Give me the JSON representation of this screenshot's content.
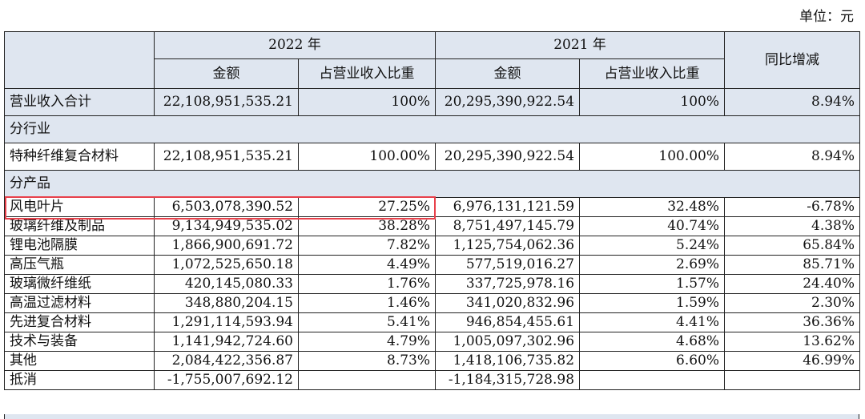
{
  "unit_label": "单位：元",
  "header": {
    "year_2022": "2022 年",
    "year_2021": "2021 年",
    "yoy": "同比增减",
    "amount": "金额",
    "share": "占营业收入比重"
  },
  "total_row": {
    "label": "营业收入合计",
    "amt_2022": "22,108,951,535.21",
    "pct_2022": "100%",
    "amt_2021": "20,295,390,922.54",
    "pct_2021": "100%",
    "yoy": "8.94%"
  },
  "sections": {
    "industry": "分行业",
    "product": "分产品"
  },
  "industry_rows": [
    {
      "label": "特种纤维复合材料",
      "amt_2022": "22,108,951,535.21",
      "pct_2022": "100.00%",
      "amt_2021": "20,295,390,922.54",
      "pct_2021": "100.00%",
      "yoy": "8.94%"
    }
  ],
  "product_rows": [
    {
      "label": "风电叶片",
      "amt_2022": "6,503,078,390.52",
      "pct_2022": "27.25%",
      "amt_2021": "6,976,131,121.59",
      "pct_2021": "32.48%",
      "yoy": "-6.78%"
    },
    {
      "label": "玻璃纤维及制品",
      "amt_2022": "9,134,949,535.02",
      "pct_2022": "38.28%",
      "amt_2021": "8,751,497,145.79",
      "pct_2021": "40.74%",
      "yoy": "4.38%"
    },
    {
      "label": "锂电池隔膜",
      "amt_2022": "1,866,900,691.72",
      "pct_2022": "7.82%",
      "amt_2021": "1,125,754,062.36",
      "pct_2021": "5.24%",
      "yoy": "65.84%"
    },
    {
      "label": "高压气瓶",
      "amt_2022": "1,072,525,650.18",
      "pct_2022": "4.49%",
      "amt_2021": "577,519,016.27",
      "pct_2021": "2.69%",
      "yoy": "85.71%"
    },
    {
      "label": "玻璃微纤维纸",
      "amt_2022": "420,145,080.33",
      "pct_2022": "1.76%",
      "amt_2021": "337,725,978.16",
      "pct_2021": "1.57%",
      "yoy": "24.40%"
    },
    {
      "label": "高温过滤材料",
      "amt_2022": "348,880,204.15",
      "pct_2022": "1.46%",
      "amt_2021": "341,020,832.96",
      "pct_2021": "1.59%",
      "yoy": "2.30%"
    },
    {
      "label": "先进复合材料",
      "amt_2022": "1,291,114,593.94",
      "pct_2022": "5.41%",
      "amt_2021": "946,854,455.61",
      "pct_2021": "4.41%",
      "yoy": "36.36%"
    },
    {
      "label": "技术与装备",
      "amt_2022": "1,141,942,724.60",
      "pct_2022": "4.79%",
      "amt_2021": "1,005,097,302.96",
      "pct_2021": "4.68%",
      "yoy": "13.62%"
    },
    {
      "label": "其他",
      "amt_2022": "2,084,422,356.87",
      "pct_2022": "8.73%",
      "amt_2021": "1,418,106,735.82",
      "pct_2021": "6.60%",
      "yoy": "46.99%"
    },
    {
      "label": "抵消",
      "amt_2022": "-1,755,007,692.12",
      "pct_2022": "",
      "amt_2021": "-1,184,315,728.98",
      "pct_2021": "",
      "yoy": ""
    }
  ],
  "highlight_color": "#e8404a"
}
